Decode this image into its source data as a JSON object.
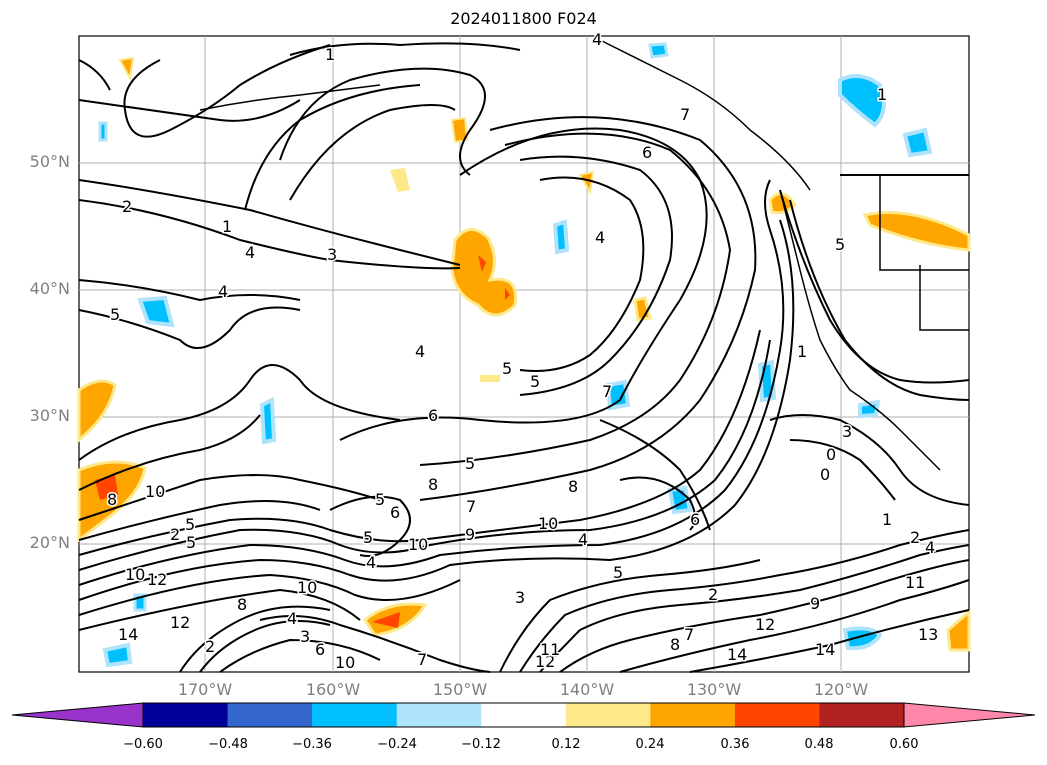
{
  "title": "2024011800 F024",
  "lat_labels": [
    "50°N",
    "40°N",
    "30°N",
    "20°N"
  ],
  "lon_labels": [
    "170°W",
    "160°W",
    "150°W",
    "140°W",
    "130°W",
    "120°W"
  ],
  "colorbar": {
    "ticks": [
      "−0.60",
      "−0.48",
      "−0.36",
      "−0.24",
      "−0.12",
      "0.12",
      "0.24",
      "0.36",
      "0.48",
      "0.60"
    ],
    "colors": [
      "#9933cc",
      "#000099",
      "#3366cc",
      "#00bfff",
      "#afe3fb",
      "#ffffff",
      "#fde88a",
      "#ffa500",
      "#ff4500",
      "#b22222",
      "#ff88aa"
    ]
  },
  "contour_labels": [
    "2",
    "1",
    "4",
    "3",
    "4",
    "5",
    "4",
    "4",
    "5",
    "6",
    "7",
    "8",
    "5",
    "6",
    "5",
    "8",
    "10",
    "9",
    "10",
    "7",
    "8",
    "10",
    "5",
    "4",
    "3",
    "4",
    "5",
    "2",
    "1",
    "0",
    "3",
    "1",
    "2",
    "4",
    "11",
    "13",
    "9",
    "12",
    "14",
    "14",
    "8",
    "7",
    "2",
    "3",
    "4",
    "6",
    "10",
    "7",
    "12",
    "11",
    "10",
    "12",
    "14",
    "2",
    "12",
    "10",
    "8",
    "5",
    "5",
    "6",
    "1",
    "0",
    "6",
    "4",
    "5",
    "5",
    "1",
    "7"
  ],
  "colors": {
    "contour": "#000000",
    "grid": "#b0b0b0",
    "axis_label": "#808080"
  }
}
